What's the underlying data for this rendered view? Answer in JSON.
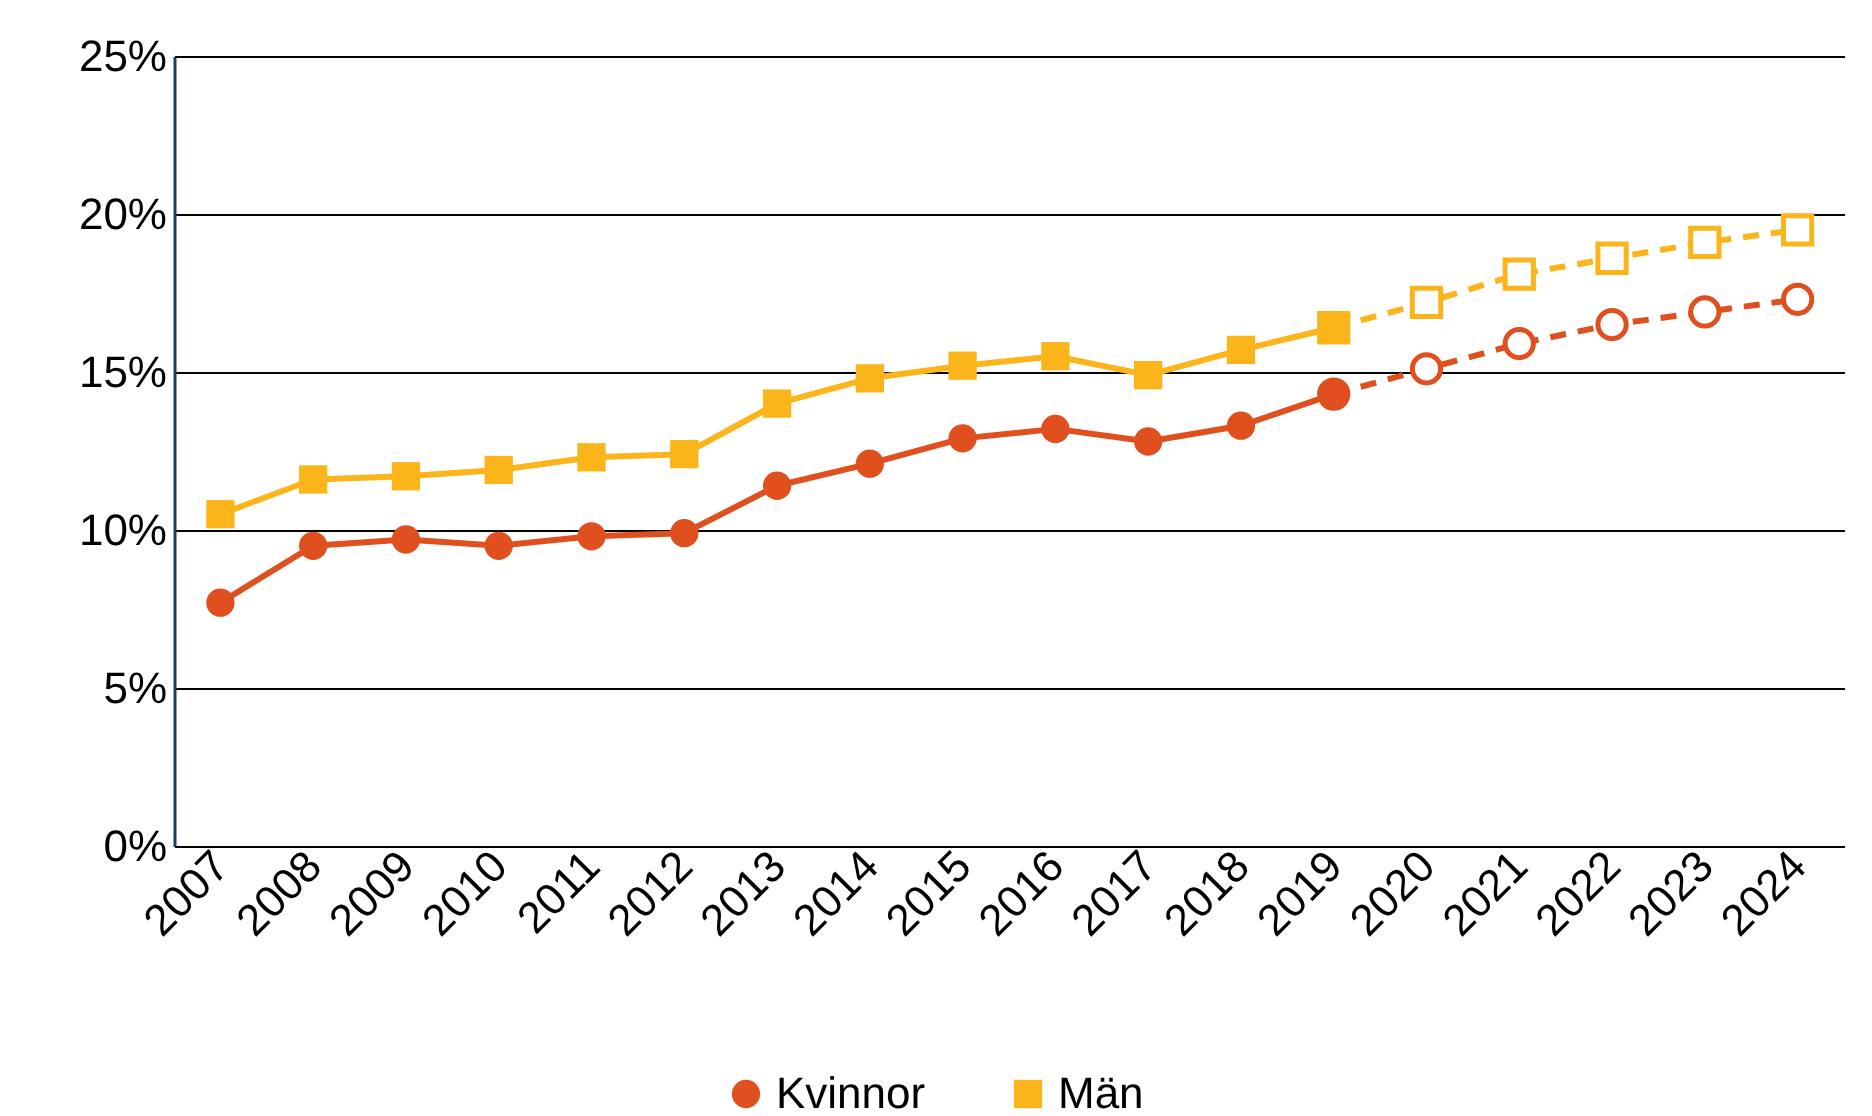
{
  "chart_data": {
    "type": "line",
    "categories": [
      "2007",
      "2008",
      "2009",
      "2010",
      "2011",
      "2012",
      "2013",
      "2014",
      "2015",
      "2016",
      "2017",
      "2018",
      "2019",
      "2020",
      "2021",
      "2022",
      "2023",
      "2024"
    ],
    "series": [
      {
        "name": "Kvinnor",
        "color": "#e0501e",
        "marker": "circle",
        "line_style": "solid",
        "values": [
          7.7,
          9.5,
          9.7,
          9.5,
          9.8,
          9.9,
          11.4,
          12.1,
          12.9,
          13.2,
          12.8,
          13.3,
          14.3,
          null,
          null,
          null,
          null,
          null
        ]
      },
      {
        "name": "Män",
        "color": "#fbb51b",
        "marker": "square",
        "line_style": "solid",
        "values": [
          10.5,
          11.6,
          11.7,
          11.9,
          12.3,
          12.4,
          14.0,
          14.8,
          15.2,
          15.5,
          14.9,
          15.7,
          16.4,
          null,
          null,
          null,
          null,
          null
        ]
      },
      {
        "color": "#e0501e",
        "marker": "circle",
        "line_style": "dashed",
        "values": [
          null,
          null,
          null,
          null,
          null,
          null,
          null,
          null,
          null,
          null,
          null,
          null,
          14.3,
          15.1,
          15.9,
          16.5,
          16.9,
          17.3
        ]
      },
      {
        "color": "#fbb51b",
        "marker": "square",
        "line_style": "dashed",
        "values": [
          null,
          null,
          null,
          null,
          null,
          null,
          null,
          null,
          null,
          null,
          null,
          null,
          16.4,
          17.2,
          18.1,
          18.6,
          19.1,
          19.5
        ]
      }
    ],
    "ylim": [
      0,
      25
    ],
    "yticks": [
      {
        "value": 0,
        "label": "0%"
      },
      {
        "value": 5,
        "label": "5%"
      },
      {
        "value": 10,
        "label": "10%"
      },
      {
        "value": 15,
        "label": "15%"
      },
      {
        "value": 20,
        "label": "20%"
      },
      {
        "value": 25,
        "label": "25%"
      }
    ],
    "grid": "y",
    "legend": "bottom"
  }
}
